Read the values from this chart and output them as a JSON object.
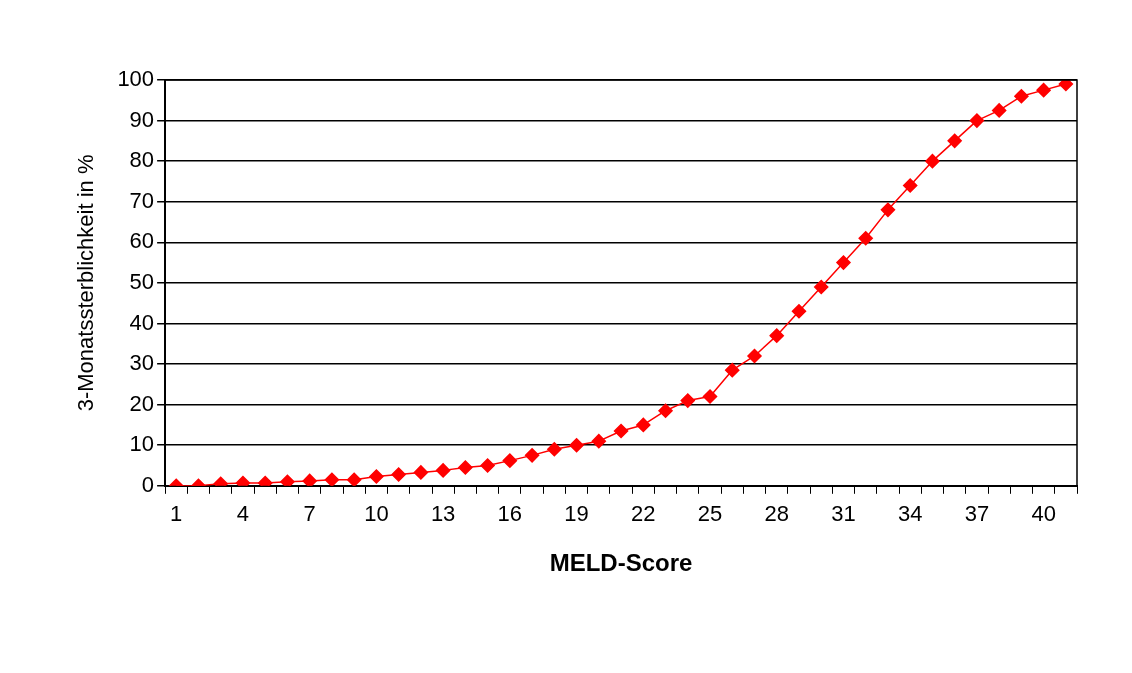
{
  "chart_data": {
    "type": "line",
    "xlabel": "MELD-Score",
    "ylabel": "3-Monatssterblichkeit in %",
    "categories": [
      "1",
      null,
      null,
      "4",
      null,
      null,
      "7",
      null,
      null,
      "10",
      null,
      null,
      "13",
      null,
      null,
      "16",
      null,
      null,
      "19",
      null,
      null,
      "22",
      null,
      null,
      "25",
      null,
      null,
      "28",
      null,
      null,
      "31",
      null,
      null,
      "34",
      null,
      null,
      "37",
      null,
      null,
      "40",
      null
    ],
    "series": [
      {
        "color": "#ff0000",
        "values": [
          0,
          0,
          0.5,
          0.7,
          0.7,
          1,
          1.2,
          1.5,
          1.5,
          2.3,
          2.8,
          3.3,
          3.8,
          4.5,
          5,
          6.2,
          7.5,
          9,
          10,
          11,
          13.5,
          15,
          18.5,
          21,
          22,
          28.5,
          32,
          37,
          43,
          49,
          55,
          61,
          68,
          74,
          80,
          85,
          90,
          92.5,
          96,
          97.5,
          99
        ]
      }
    ],
    "ylim": [
      0,
      100
    ],
    "yticks": [
      0,
      10,
      20,
      30,
      40,
      50,
      60,
      70,
      80,
      90,
      100
    ],
    "grid": "y",
    "legend": false,
    "marker": "diamond",
    "line_style": "solid"
  }
}
